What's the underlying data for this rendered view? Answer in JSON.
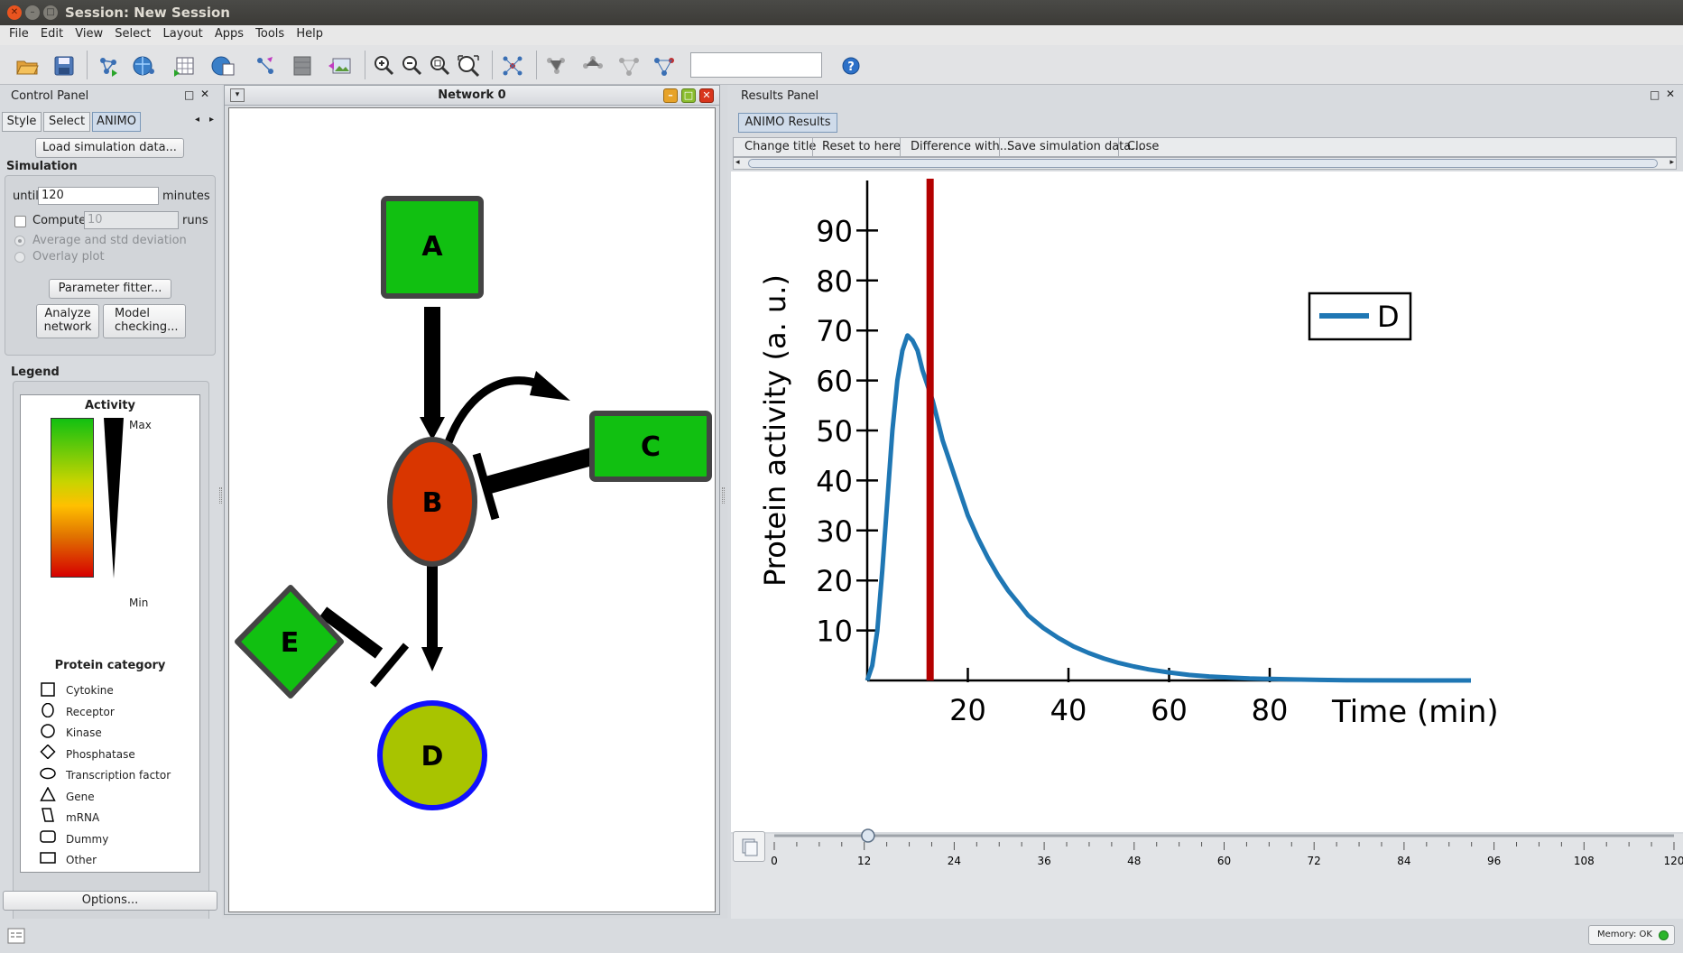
{
  "window": {
    "title": "Session: New Session"
  },
  "menu": [
    "File",
    "Edit",
    "View",
    "Select",
    "Layout",
    "Apps",
    "Tools",
    "Help"
  ],
  "toolbar": {
    "search_value": ""
  },
  "control_panel": {
    "title": "Control Panel",
    "tabs": [
      "Style",
      "Select",
      "ANIMO"
    ],
    "active_tab": "ANIMO",
    "load_button": "Load simulation data...",
    "simulation_label": "Simulation",
    "until_label": "until",
    "until_value": "120",
    "minutes_label": "minutes",
    "compute_label": "Compute",
    "compute_value": "10",
    "runs_label": "runs",
    "avg_label": "Average and std deviation",
    "overlay_label": "Overlay plot",
    "param_button": "Parameter fitter...",
    "analyze_line1": "Analyze",
    "analyze_line2": "network",
    "model_line1": "Model",
    "model_line2": "checking...",
    "legend_label": "Legend",
    "activity_label": "Activity",
    "max_label": "Max",
    "min_label": "Min",
    "category_label": "Protein category",
    "categories": [
      "Cytokine",
      "Receptor",
      "Kinase",
      "Phosphatase",
      "Transcription factor",
      "Gene",
      "mRNA",
      "Dummy",
      "Other"
    ],
    "options_button": "Options..."
  },
  "network": {
    "title": "Network 0",
    "nodes": [
      {
        "id": "A",
        "label": "A",
        "shape": "square",
        "color": "#11c011"
      },
      {
        "id": "B",
        "label": "B",
        "shape": "ellipse",
        "color": "#d93600"
      },
      {
        "id": "C",
        "label": "C",
        "shape": "rectangle",
        "color": "#11c011"
      },
      {
        "id": "D",
        "label": "D",
        "shape": "circle",
        "color": "#a8c400"
      },
      {
        "id": "E",
        "label": "E",
        "shape": "diamond",
        "color": "#11c011"
      }
    ]
  },
  "results_panel": {
    "title": "Results Panel",
    "tab": "ANIMO Results",
    "actions": [
      "Change title",
      "Reset to here",
      "Difference with...",
      "Save simulation data...",
      "Close"
    ]
  },
  "chart_data": {
    "type": "line",
    "xlabel": "Time (min)",
    "ylabel": "Protein activity (a. u.)",
    "xlim": [
      0,
      120
    ],
    "ylim": [
      0,
      100
    ],
    "xticks": [
      20,
      40,
      60,
      80
    ],
    "yticks": [
      10,
      20,
      30,
      40,
      50,
      60,
      70,
      80,
      90
    ],
    "legend_position": "top-right",
    "cursor_x": 12.5,
    "cursor_color": "#b30000",
    "series": [
      {
        "name": "D",
        "color": "#1f77b4",
        "x": [
          0,
          1,
          2,
          3,
          4,
          5,
          6,
          7,
          8,
          9,
          10,
          11,
          12,
          13,
          14,
          15,
          16,
          18,
          20,
          22,
          24,
          26,
          28,
          30,
          32,
          35,
          38,
          41,
          44,
          47,
          50,
          53,
          56,
          60,
          64,
          68,
          72,
          76,
          80,
          85,
          90,
          95,
          100,
          110,
          120
        ],
        "values": [
          0,
          3,
          10,
          22,
          36,
          50,
          60,
          66,
          69,
          68,
          66,
          62,
          59,
          56,
          52,
          48,
          45,
          39,
          33,
          28.5,
          24.5,
          21,
          18,
          15.5,
          13,
          10.5,
          8.5,
          6.8,
          5.5,
          4.4,
          3.5,
          2.8,
          2.2,
          1.6,
          1.1,
          0.8,
          0.6,
          0.4,
          0.3,
          0.2,
          0.1,
          0.05,
          0.02,
          0,
          0
        ]
      }
    ]
  },
  "slider": {
    "ticks": [
      "0",
      "12",
      "24",
      "36",
      "48",
      "60",
      "72",
      "84",
      "96",
      "108",
      "120"
    ],
    "max": 120,
    "value": 12.5
  },
  "status": {
    "memory": "Memory: OK"
  }
}
